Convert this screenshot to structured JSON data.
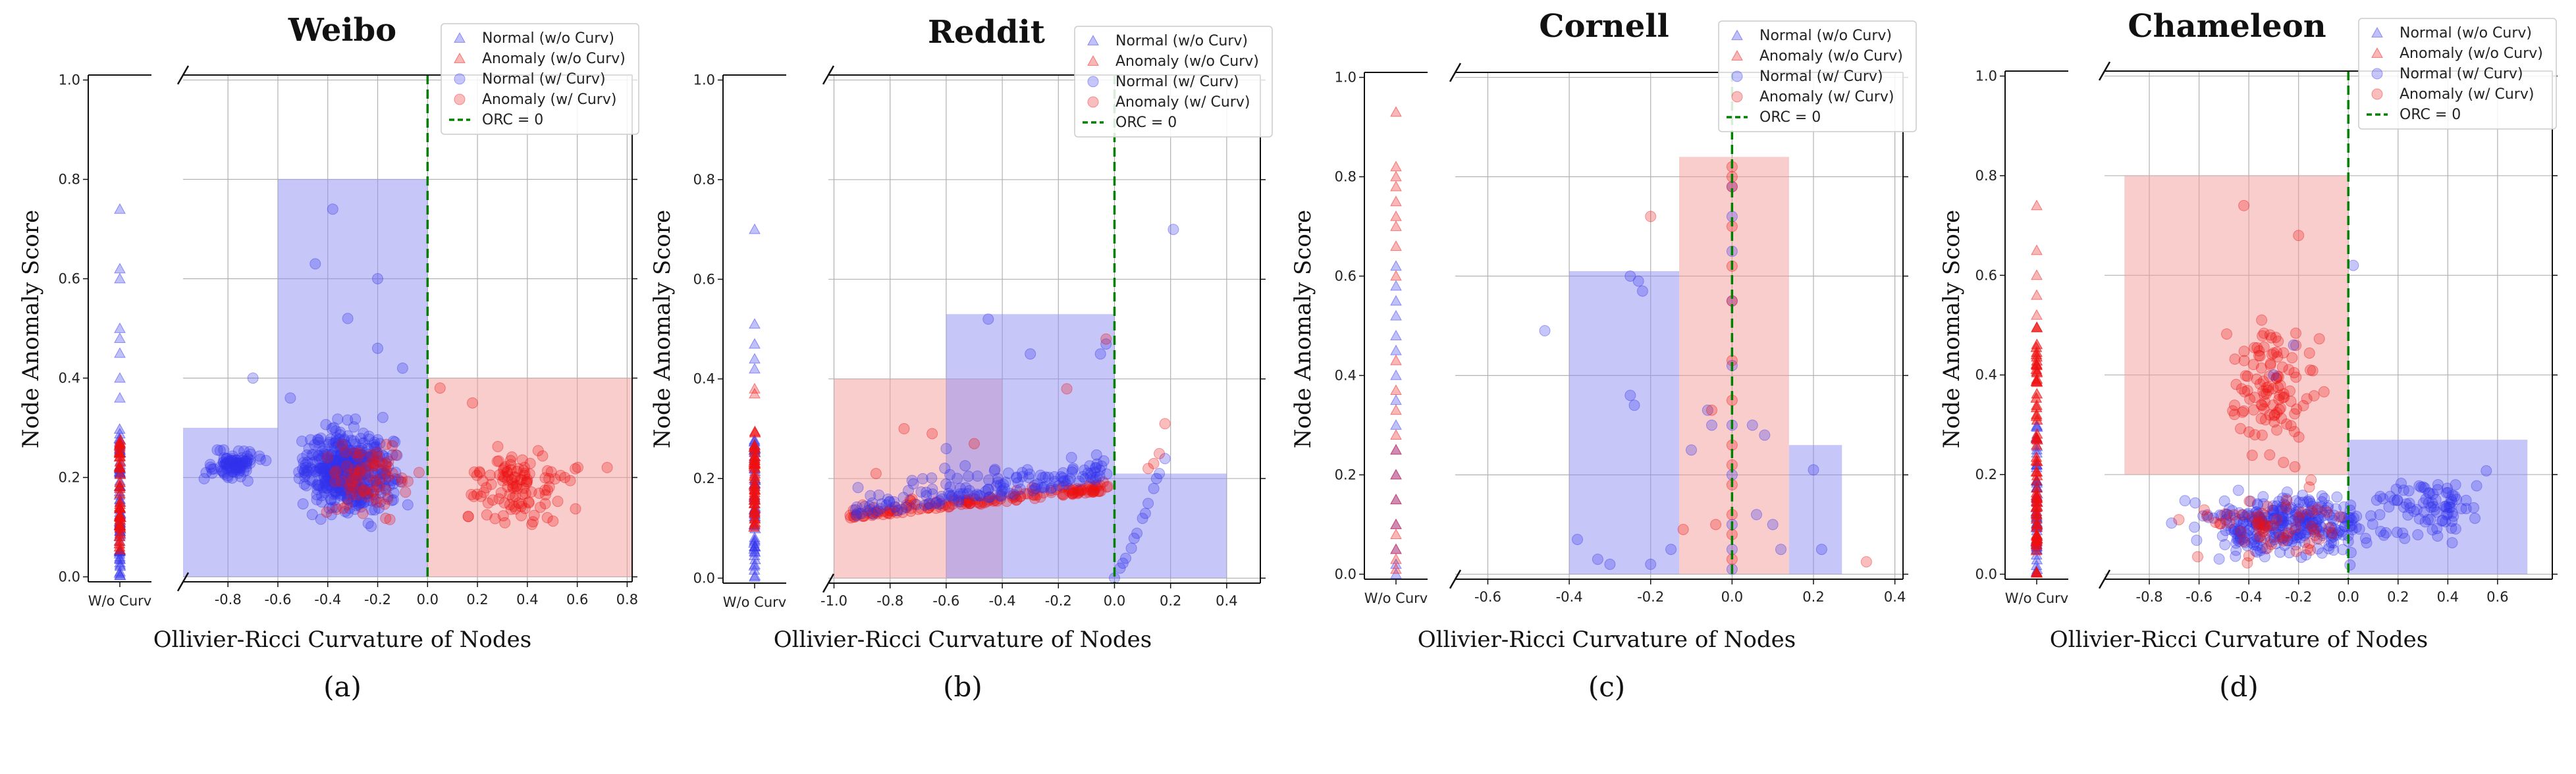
{
  "chart_data": [
    {
      "id": "a",
      "type": "scatter",
      "title": "Weibo",
      "subtitle": "(a)",
      "xlabel": "Ollivier-Ricci Curvature of Nodes",
      "ylabel": "Node Anomaly Score",
      "stub_label": "W/o Curv",
      "xlim": [
        -0.98,
        0.82
      ],
      "ylim": [
        -0.01,
        1.01
      ],
      "xticks": [
        -0.8,
        -0.6,
        -0.4,
        -0.2,
        0.0,
        0.2,
        0.4,
        0.6,
        0.8
      ],
      "yticks": [
        0.0,
        0.2,
        0.4,
        0.6,
        0.8,
        1.0
      ],
      "orc_line": 0.0,
      "legend": [
        "Normal (w/o Curv)",
        "Anomaly (w/o Curv)",
        "Normal (w/ Curv)",
        "Anomaly (w/ Curv)",
        "ORC = 0"
      ],
      "bars": [
        {
          "group": "normal",
          "x0": -0.98,
          "x1": -0.6,
          "h": 0.3
        },
        {
          "group": "normal",
          "x0": -0.6,
          "x1": 0.0,
          "h": 0.8
        },
        {
          "group": "anomaly",
          "x0": 0.0,
          "x1": 0.82,
          "h": 0.4
        }
      ],
      "clusters": [
        {
          "series": "normal",
          "n": 520,
          "x": [
            -0.62,
            -0.02
          ],
          "y": [
            0.08,
            0.34
          ]
        },
        {
          "series": "normal",
          "n": 90,
          "x": [
            -0.95,
            -0.6
          ],
          "y": [
            0.18,
            0.27
          ]
        },
        {
          "series": "anomaly",
          "n": 70,
          "x": [
            -0.5,
            0.0
          ],
          "y": [
            0.1,
            0.3
          ]
        },
        {
          "series": "anomaly",
          "n": 110,
          "x": [
            0.0,
            0.7
          ],
          "y": [
            0.05,
            0.3
          ]
        }
      ],
      "extra_points": [
        {
          "series": "normal",
          "points": [
            [
              -0.38,
              0.74
            ],
            [
              -0.45,
              0.63
            ],
            [
              -0.32,
              0.52
            ],
            [
              -0.2,
              0.46
            ],
            [
              -0.7,
              0.4
            ],
            [
              -0.55,
              0.36
            ],
            [
              -0.2,
              0.6
            ],
            [
              -0.1,
              0.42
            ]
          ]
        },
        {
          "series": "anomaly",
          "points": [
            [
              0.05,
              0.38
            ],
            [
              0.18,
              0.35
            ],
            [
              0.72,
              0.22
            ],
            [
              0.55,
              0.2
            ]
          ]
        }
      ],
      "stub": [
        {
          "series": "normal",
          "n": 70,
          "y": [
            0.0,
            0.3
          ]
        },
        {
          "series": "normal",
          "points": [
            0.74,
            0.62,
            0.6,
            0.5,
            0.48,
            0.45,
            0.4,
            0.36
          ]
        },
        {
          "series": "anomaly",
          "n": 45,
          "y": [
            0.05,
            0.28
          ]
        }
      ]
    },
    {
      "id": "b",
      "type": "scatter",
      "title": "Reddit",
      "subtitle": "(b)",
      "xlabel": "Ollivier-Ricci Curvature of Nodes",
      "ylabel": "Node Anomaly Score",
      "stub_label": "W/o Curv",
      "xlim": [
        -1.02,
        0.52
      ],
      "ylim": [
        -0.01,
        1.01
      ],
      "xticks": [
        -1.0,
        -0.8,
        -0.6,
        -0.4,
        -0.2,
        0.0,
        0.2,
        0.4
      ],
      "yticks": [
        0.0,
        0.2,
        0.4,
        0.6,
        0.8,
        1.0
      ],
      "orc_line": 0.0,
      "legend": [
        "Normal (w/o Curv)",
        "Anomaly (w/o Curv)",
        "Normal (w/ Curv)",
        "Anomaly (w/ Curv)",
        "ORC = 0"
      ],
      "bars": [
        {
          "group": "anomaly",
          "x0": -1.0,
          "x1": -0.4,
          "h": 0.4
        },
        {
          "group": "normal",
          "x0": -0.6,
          "x1": 0.0,
          "h": 0.53
        },
        {
          "group": "normal",
          "x0": 0.0,
          "x1": 0.4,
          "h": 0.21
        }
      ],
      "curve_points": [
        {
          "series": "anomaly",
          "n": 160,
          "x": [
            -0.95,
            -0.02
          ],
          "y0": 0.12,
          "slope": 0.06,
          "spread": 0.03
        },
        {
          "series": "normal",
          "n": 150,
          "x": [
            -0.95,
            -0.02
          ],
          "y0": 0.12,
          "slope": 0.08,
          "spread": 0.09
        }
      ],
      "extra_points": [
        {
          "series": "normal",
          "points": [
            [
              0.0,
              0.0
            ],
            [
              0.02,
              0.02
            ],
            [
              0.04,
              0.04
            ],
            [
              0.06,
              0.06
            ],
            [
              0.08,
              0.09
            ],
            [
              0.1,
              0.12
            ],
            [
              0.12,
              0.15
            ],
            [
              0.14,
              0.18
            ],
            [
              0.16,
              0.21
            ],
            [
              0.18,
              0.24
            ],
            [
              0.21,
              0.7
            ],
            [
              -0.03,
              0.47
            ],
            [
              -0.05,
              0.45
            ],
            [
              -0.3,
              0.45
            ],
            [
              -0.45,
              0.52
            ],
            [
              -0.6,
              0.26
            ],
            [
              0.03,
              0.03
            ],
            [
              0.07,
              0.08
            ],
            [
              0.11,
              0.13
            ],
            [
              0.15,
              0.2
            ]
          ]
        },
        {
          "series": "anomaly",
          "points": [
            [
              -0.03,
              0.48
            ],
            [
              -0.17,
              0.38
            ],
            [
              -0.75,
              0.3
            ],
            [
              -0.65,
              0.29
            ],
            [
              0.16,
              0.25
            ],
            [
              0.18,
              0.31
            ],
            [
              0.12,
              0.22
            ],
            [
              0.14,
              0.23
            ],
            [
              -0.85,
              0.21
            ],
            [
              -0.5,
              0.27
            ]
          ]
        }
      ],
      "stub": [
        {
          "series": "normal",
          "n": 55,
          "y": [
            0.0,
            0.28
          ]
        },
        {
          "series": "normal",
          "points": [
            0.7,
            0.51,
            0.47,
            0.44,
            0.42
          ]
        },
        {
          "series": "anomaly",
          "n": 45,
          "y": [
            0.1,
            0.3
          ]
        },
        {
          "series": "anomaly",
          "points": [
            0.38,
            0.37
          ]
        }
      ]
    },
    {
      "id": "c",
      "type": "scatter",
      "title": "Cornell",
      "subtitle": "(c)",
      "xlabel": "Ollivier-Ricci Curvature of Nodes",
      "ylabel": "Node Anomaly Score",
      "stub_label": "W/o Curv",
      "xlim": [
        -0.68,
        0.42
      ],
      "ylim": [
        -0.01,
        1.01
      ],
      "xticks": [
        -0.6,
        -0.4,
        -0.2,
        0.0,
        0.2,
        0.4
      ],
      "yticks": [
        0.0,
        0.2,
        0.4,
        0.6,
        0.8,
        1.0
      ],
      "orc_line": 0.0,
      "legend": [
        "Normal (w/o Curv)",
        "Anomaly (w/o Curv)",
        "Normal (w/ Curv)",
        "Anomaly (w/ Curv)",
        "ORC = 0"
      ],
      "bars": [
        {
          "group": "normal",
          "x0": -0.4,
          "x1": -0.13,
          "h": 0.61
        },
        {
          "group": "anomaly",
          "x0": -0.13,
          "x1": 0.14,
          "h": 0.84
        },
        {
          "group": "normal",
          "x0": 0.14,
          "x1": 0.27,
          "h": 0.26
        }
      ],
      "extra_points": [
        {
          "series": "normal",
          "points": [
            [
              -0.46,
              0.49
            ],
            [
              -0.38,
              0.07
            ],
            [
              -0.33,
              0.03
            ],
            [
              -0.3,
              0.02
            ],
            [
              -0.25,
              0.6
            ],
            [
              -0.23,
              0.59
            ],
            [
              -0.22,
              0.57
            ],
            [
              -0.25,
              0.36
            ],
            [
              -0.24,
              0.34
            ],
            [
              -0.2,
              0.02
            ],
            [
              -0.15,
              0.05
            ],
            [
              -0.1,
              0.25
            ],
            [
              -0.05,
              0.3
            ],
            [
              0.05,
              0.3
            ],
            [
              0.08,
              0.28
            ],
            [
              0.1,
              0.1
            ],
            [
              0.12,
              0.05
            ],
            [
              0.2,
              0.21
            ],
            [
              0.22,
              0.05
            ],
            [
              0.0,
              0.78
            ],
            [
              0.0,
              0.72
            ],
            [
              0.0,
              0.65
            ],
            [
              0.0,
              0.55
            ],
            [
              0.0,
              0.42
            ],
            [
              0.0,
              0.3
            ],
            [
              0.0,
              0.2
            ],
            [
              0.0,
              0.1
            ],
            [
              0.0,
              0.05
            ],
            [
              0.0,
              0.01
            ],
            [
              -0.06,
              0.33
            ],
            [
              0.06,
              0.12
            ]
          ]
        },
        {
          "series": "anomaly",
          "points": [
            [
              -0.2,
              0.72
            ],
            [
              0.0,
              0.82
            ],
            [
              0.0,
              0.8
            ],
            [
              0.0,
              0.78
            ],
            [
              0.0,
              0.7
            ],
            [
              0.0,
              0.62
            ],
            [
              0.0,
              0.55
            ],
            [
              0.0,
              0.43
            ],
            [
              0.0,
              0.35
            ],
            [
              0.0,
              0.26
            ],
            [
              0.0,
              0.22
            ],
            [
              0.0,
              0.18
            ],
            [
              0.0,
              0.12
            ],
            [
              0.0,
              0.08
            ],
            [
              0.0,
              0.03
            ],
            [
              -0.05,
              0.33
            ],
            [
              -0.04,
              0.1
            ],
            [
              -0.12,
              0.09
            ],
            [
              0.33,
              0.025
            ]
          ]
        }
      ],
      "stub": [
        {
          "series": "normal",
          "points": [
            0.62,
            0.58,
            0.55,
            0.52,
            0.48,
            0.45,
            0.4,
            0.35,
            0.3,
            0.25,
            0.2,
            0.15,
            0.1,
            0.05,
            0.02,
            0.0
          ]
        },
        {
          "series": "anomaly",
          "points": [
            0.93,
            0.82,
            0.8,
            0.78,
            0.75,
            0.72,
            0.7,
            0.66,
            0.6,
            0.43,
            0.37,
            0.33,
            0.28,
            0.25,
            0.2,
            0.15,
            0.1,
            0.08,
            0.05,
            0.03,
            0.01
          ]
        }
      ]
    },
    {
      "id": "d",
      "type": "scatter",
      "title": "Chameleon",
      "subtitle": "(d)",
      "xlabel": "Ollivier-Ricci Curvature of Nodes",
      "ylabel": "Node Anomaly Score",
      "stub_label": "W/o Curv",
      "xlim": [
        -0.98,
        0.82
      ],
      "ylim": [
        -0.01,
        1.01
      ],
      "xticks": [
        -0.8,
        -0.6,
        -0.4,
        -0.2,
        0.0,
        0.2,
        0.4,
        0.6
      ],
      "yticks": [
        0.0,
        0.2,
        0.4,
        0.6,
        0.8,
        1.0
      ],
      "orc_line": 0.0,
      "legend": [
        "Normal (w/o Curv)",
        "Anomaly (w/o Curv)",
        "Normal (w/ Curv)",
        "Anomaly (w/ Curv)",
        "ORC = 0"
      ],
      "bars": [
        {
          "group": "anomaly",
          "x0": -0.9,
          "x1": 0.0,
          "h": 0.6,
          "y0": 0.2
        },
        {
          "group": "normal",
          "x0": 0.0,
          "x1": 0.72,
          "h": 0.27
        }
      ],
      "clusters": [
        {
          "series": "normal",
          "n": 320,
          "x": [
            -0.8,
            0.3
          ],
          "y": [
            0.0,
            0.2
          ]
        },
        {
          "series": "normal",
          "n": 80,
          "x": [
            0.0,
            0.7
          ],
          "y": [
            0.02,
            0.25
          ]
        },
        {
          "series": "anomaly",
          "n": 110,
          "x": [
            -0.6,
            0.0
          ],
          "y": [
            0.15,
            0.58
          ]
        },
        {
          "series": "anomaly",
          "n": 60,
          "x": [
            -0.8,
            0.2
          ],
          "y": [
            0.0,
            0.2
          ]
        }
      ],
      "extra_points": [
        {
          "series": "anomaly",
          "points": [
            [
              -0.42,
              0.74
            ],
            [
              -0.2,
              0.68
            ]
          ]
        },
        {
          "series": "normal",
          "points": [
            [
              0.02,
              0.62
            ],
            [
              -0.22,
              0.46
            ],
            [
              -0.3,
              0.4
            ]
          ]
        }
      ],
      "stub": [
        {
          "series": "normal",
          "n": 55,
          "y": [
            0.0,
            0.3
          ]
        },
        {
          "series": "anomaly",
          "n": 70,
          "y": [
            0.0,
            0.5
          ]
        },
        {
          "series": "anomaly",
          "points": [
            0.74,
            0.65,
            0.6,
            0.56,
            0.52
          ]
        }
      ]
    }
  ],
  "colors": {
    "normal": "#3333ee",
    "anomaly": "#ee1111",
    "normal_bar": "#8e8ef4",
    "anomaly_bar": "#f69c9c",
    "orc_line": "#008000",
    "grid": "#b0b0b0"
  }
}
